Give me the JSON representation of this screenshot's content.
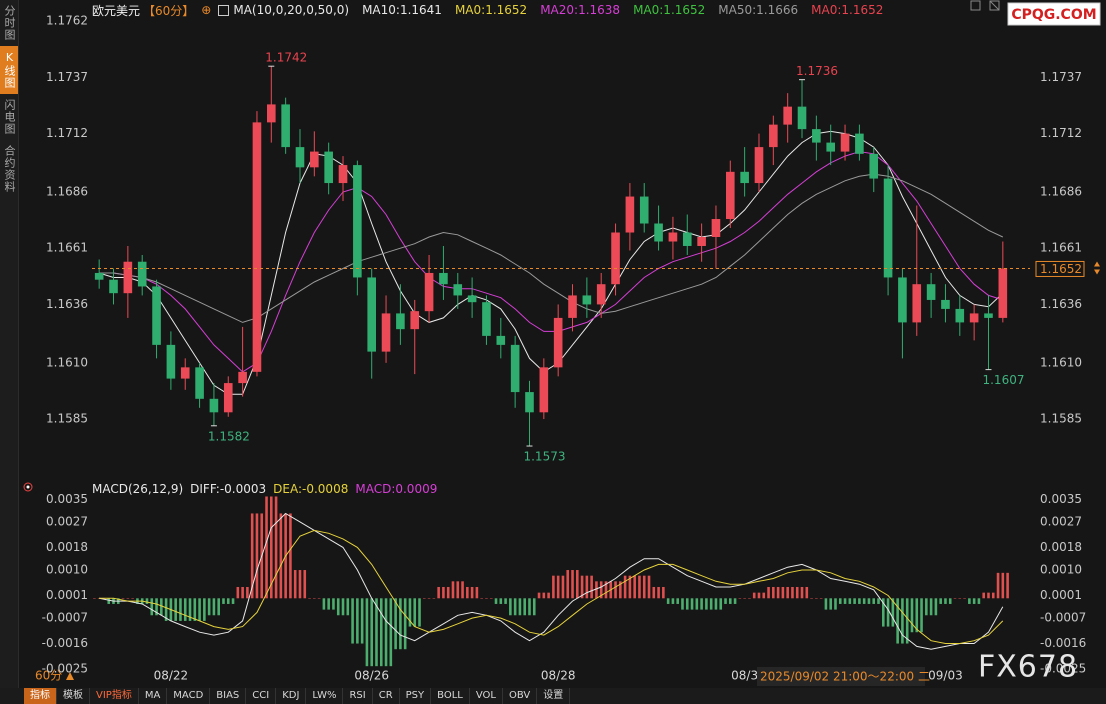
{
  "sidebar": {
    "tabs": [
      "分时图",
      "K线图",
      "闪电图",
      "合约资料"
    ]
  },
  "logo": "CPQG.COM",
  "watermark": "FX678",
  "period_selector": "60分",
  "toolbar": {
    "tabs": [
      "指标",
      "模板",
      "VIP指标",
      "MA",
      "MACD",
      "BIAS",
      "CCI",
      "KDJ",
      "LW%",
      "RSI",
      "CR",
      "PSY",
      "BOLL",
      "VOL",
      "OBV",
      "设置"
    ]
  },
  "chart_data": [
    {
      "type": "candlestick",
      "title": "欧元美元",
      "subtitle": "【60分】",
      "indicator": "MA(10,0,20,0,50,0)",
      "crosshair_label": "2025/09/02 21:00～22:00 二",
      "up_color": "#ec4a56",
      "down_color": "#2fae70",
      "categories": [
        null,
        null,
        null,
        null,
        null,
        "08/22",
        null,
        null,
        null,
        null,
        null,
        null,
        null,
        null,
        null,
        null,
        null,
        null,
        null,
        "08/26",
        null,
        null,
        null,
        null,
        null,
        null,
        null,
        null,
        null,
        null,
        null,
        null,
        "08/28",
        null,
        null,
        null,
        null,
        null,
        null,
        null,
        null,
        null,
        null,
        null,
        null,
        "08/3",
        null,
        null,
        null,
        null,
        null,
        null,
        null,
        null,
        null,
        null,
        null,
        null,
        null,
        "09/03",
        null,
        null,
        null,
        null
      ],
      "open": [
        1.165,
        1.1647,
        1.1641,
        1.1655,
        1.1644,
        1.1618,
        1.1603,
        1.1608,
        1.1594,
        1.1588,
        1.1601,
        1.1606,
        1.1717,
        1.1725,
        1.1706,
        1.1697,
        1.1704,
        1.169,
        1.1698,
        1.1648,
        1.1615,
        1.1632,
        1.1625,
        1.1633,
        1.165,
        1.1645,
        1.164,
        1.1637,
        1.1622,
        1.1618,
        1.1597,
        1.1588,
        1.1608,
        1.163,
        1.164,
        1.1636,
        1.1645,
        1.1668,
        1.1684,
        1.1672,
        1.1664,
        1.1668,
        1.1662,
        1.1666,
        1.1674,
        1.1695,
        1.169,
        1.1706,
        1.1716,
        1.1724,
        1.1714,
        1.1708,
        1.1704,
        1.1712,
        1.1703,
        1.1692,
        1.1648,
        1.1628,
        1.1645,
        1.1638,
        1.1634,
        1.1628,
        1.1632,
        1.163
      ],
      "high": [
        1.1656,
        1.1652,
        1.1662,
        1.1658,
        1.1647,
        1.1624,
        1.1612,
        1.161,
        1.1601,
        1.1604,
        1.1626,
        1.1722,
        1.1742,
        1.1728,
        1.1714,
        1.1713,
        1.1708,
        1.1702,
        1.17,
        1.1652,
        1.164,
        1.1645,
        1.1638,
        1.1658,
        1.1662,
        1.165,
        1.1648,
        1.164,
        1.163,
        1.1622,
        1.1602,
        1.1612,
        1.1636,
        1.1645,
        1.1648,
        1.165,
        1.1672,
        1.169,
        1.169,
        1.168,
        1.1675,
        1.1676,
        1.1672,
        1.168,
        1.17,
        1.1706,
        1.1712,
        1.172,
        1.173,
        1.1736,
        1.172,
        1.1716,
        1.1716,
        1.1716,
        1.1706,
        1.1698,
        1.1652,
        1.168,
        1.165,
        1.1645,
        1.164,
        1.1636,
        1.164,
        1.1664
      ],
      "low": [
        1.1643,
        1.1636,
        1.163,
        1.164,
        1.1612,
        1.1598,
        1.1598,
        1.159,
        1.1582,
        1.1586,
        1.1595,
        1.1604,
        1.1708,
        1.1703,
        1.169,
        1.1693,
        1.1685,
        1.1682,
        1.164,
        1.1603,
        1.161,
        1.1618,
        1.1605,
        1.1628,
        1.1638,
        1.1634,
        1.163,
        1.1618,
        1.1612,
        1.159,
        1.1573,
        1.1585,
        1.1604,
        1.1624,
        1.163,
        1.163,
        1.164,
        1.166,
        1.1668,
        1.166,
        1.1656,
        1.1658,
        1.1655,
        1.1652,
        1.167,
        1.1684,
        1.1686,
        1.1698,
        1.1708,
        1.171,
        1.17,
        1.1698,
        1.17,
        1.17,
        1.1686,
        1.164,
        1.1612,
        1.1622,
        1.163,
        1.1628,
        1.1622,
        1.162,
        1.1607,
        1.1628
      ],
      "close": [
        1.1647,
        1.1641,
        1.1655,
        1.1644,
        1.1618,
        1.1603,
        1.1608,
        1.1594,
        1.1588,
        1.1601,
        1.1606,
        1.1717,
        1.1725,
        1.1706,
        1.1697,
        1.1704,
        1.169,
        1.1698,
        1.1648,
        1.1615,
        1.1632,
        1.1625,
        1.1633,
        1.165,
        1.1645,
        1.164,
        1.1637,
        1.1622,
        1.1618,
        1.1597,
        1.1588,
        1.1608,
        1.163,
        1.164,
        1.1636,
        1.1645,
        1.1668,
        1.1684,
        1.1672,
        1.1664,
        1.1668,
        1.1662,
        1.1666,
        1.1674,
        1.1695,
        1.169,
        1.1706,
        1.1716,
        1.1724,
        1.1714,
        1.1708,
        1.1704,
        1.1712,
        1.1703,
        1.1692,
        1.1648,
        1.1628,
        1.1645,
        1.1638,
        1.1634,
        1.1628,
        1.1632,
        1.163,
        1.1652
      ],
      "series": [
        {
          "name": "MA10:1.1641",
          "color": "#e8e8e8",
          "values": [
            1.165,
            1.1648,
            1.1648,
            1.1646,
            1.164,
            1.163,
            1.162,
            1.161,
            1.16,
            1.1596,
            1.1596,
            1.1612,
            1.164,
            1.1668,
            1.169,
            1.1703,
            1.1702,
            1.1698,
            1.169,
            1.1672,
            1.1655,
            1.1642,
            1.1632,
            1.1628,
            1.163,
            1.1636,
            1.164,
            1.1638,
            1.1634,
            1.1625,
            1.1612,
            1.1606,
            1.161,
            1.1618,
            1.1626,
            1.1634,
            1.1645,
            1.1656,
            1.1664,
            1.1668,
            1.167,
            1.1668,
            1.1666,
            1.1667,
            1.1672,
            1.1678,
            1.1686,
            1.1694,
            1.1702,
            1.1708,
            1.1712,
            1.1713,
            1.1712,
            1.171,
            1.1706,
            1.1698,
            1.1684,
            1.1672,
            1.166,
            1.1648,
            1.164,
            1.1636,
            1.1635,
            1.1641
          ]
        },
        {
          "name": "MA0:1.1652",
          "color": "#e6d23c"
        },
        {
          "name": "MA20:1.1638",
          "color": "#d63fd6",
          "values": [
            1.165,
            1.165,
            1.1649,
            1.1648,
            1.1645,
            1.164,
            1.1634,
            1.1626,
            1.1618,
            1.1612,
            1.1606,
            1.161,
            1.1624,
            1.164,
            1.1655,
            1.1668,
            1.1678,
            1.1686,
            1.1688,
            1.1684,
            1.1676,
            1.1665,
            1.1655,
            1.1648,
            1.1644,
            1.1643,
            1.1643,
            1.1641,
            1.1639,
            1.1634,
            1.1628,
            1.1624,
            1.1624,
            1.1626,
            1.1628,
            1.1632,
            1.1636,
            1.1642,
            1.1648,
            1.1652,
            1.1655,
            1.1657,
            1.1659,
            1.1661,
            1.1664,
            1.1668,
            1.1673,
            1.1679,
            1.1685,
            1.169,
            1.1695,
            1.1699,
            1.1702,
            1.1704,
            1.1703,
            1.1698,
            1.169,
            1.1682,
            1.1672,
            1.1662,
            1.1652,
            1.1645,
            1.164,
            1.1638
          ]
        },
        {
          "name": "MA0:1.1652",
          "color": "#3fc23f"
        },
        {
          "name": "MA50:1.1666",
          "color": "#9a9a9a",
          "values": [
            1.165,
            1.165,
            1.1649,
            1.1648,
            1.1646,
            1.1643,
            1.164,
            1.1637,
            1.1634,
            1.1631,
            1.1628,
            1.163,
            1.1634,
            1.1638,
            1.1642,
            1.1646,
            1.1649,
            1.1652,
            1.1655,
            1.1657,
            1.1659,
            1.1661,
            1.1663,
            1.1666,
            1.1668,
            1.1667,
            1.1664,
            1.1661,
            1.1658,
            1.1654,
            1.165,
            1.1645,
            1.1641,
            1.1637,
            1.1634,
            1.1632,
            1.1633,
            1.1635,
            1.1637,
            1.1639,
            1.1641,
            1.1643,
            1.1645,
            1.1648,
            1.1653,
            1.1658,
            1.1664,
            1.167,
            1.1676,
            1.1681,
            1.1685,
            1.1688,
            1.1691,
            1.1693,
            1.1694,
            1.1693,
            1.1691,
            1.1688,
            1.1685,
            1.1681,
            1.1677,
            1.1673,
            1.1669,
            1.1666
          ]
        },
        {
          "name": "MA0:1.1652",
          "color": "#e8434f"
        }
      ],
      "ylim": [
        1.1565,
        1.1767
      ],
      "yticks": [
        1.1762,
        1.1737,
        1.1712,
        1.1686,
        1.1661,
        1.1636,
        {
          "value": 1.161,
          "label": "1.1610"
        },
        1.1585
      ],
      "yticks_right": [
        1.1737,
        1.1712,
        1.1686,
        1.1661,
        1.1636,
        {
          "value": 1.161,
          "label": "1.1610"
        },
        1.1585
      ],
      "grid": false
    },
    {
      "type": "macd",
      "title": "MACD(26,12,9)",
      "series": [
        {
          "name": "DIFF:-0.0003",
          "color": "#e8e8e8",
          "style": "line",
          "values": [
            0.0,
            -0.0001,
            -0.0001,
            -0.0002,
            -0.0005,
            -0.0008,
            -0.001,
            -0.0012,
            -0.0013,
            -0.0012,
            -0.0008,
            0.001,
            0.0025,
            0.003,
            0.0027,
            0.0024,
            0.0021,
            0.0018,
            0.001,
            0.0,
            -0.0008,
            -0.0013,
            -0.0015,
            -0.0012,
            -0.0009,
            -0.0006,
            -0.0005,
            -0.0006,
            -0.0008,
            -0.0012,
            -0.0015,
            -0.0012,
            -0.0006,
            -0.0001,
            0.0002,
            0.0004,
            0.0007,
            0.0011,
            0.0014,
            0.0014,
            0.0011,
            0.0008,
            0.0006,
            0.0004,
            0.0004,
            0.0005,
            0.0007,
            0.0009,
            0.0011,
            0.0012,
            0.001,
            0.0007,
            0.0006,
            0.0005,
            0.0003,
            -0.0004,
            -0.0013,
            -0.0017,
            -0.0018,
            -0.0017,
            -0.0016,
            -0.0016,
            -0.0012,
            -0.0003
          ]
        },
        {
          "name": "DEA:-0.0008",
          "color": "#e6d23c",
          "style": "line",
          "values": [
            0.0,
            0.0,
            -0.0001,
            -0.0001,
            -0.0002,
            -0.0004,
            -0.0006,
            -0.0008,
            -0.001,
            -0.0011,
            -0.001,
            -0.0005,
            0.0005,
            0.0015,
            0.0022,
            0.0024,
            0.0023,
            0.0021,
            0.0018,
            0.0012,
            0.0004,
            -0.0004,
            -0.001,
            -0.0012,
            -0.0011,
            -0.0009,
            -0.0007,
            -0.0006,
            -0.0007,
            -0.0009,
            -0.0012,
            -0.0013,
            -0.001,
            -0.0006,
            -0.0002,
            0.0001,
            0.0004,
            0.0007,
            0.001,
            0.0012,
            0.0012,
            0.001,
            0.0008,
            0.0006,
            0.0005,
            0.0005,
            0.0006,
            0.0007,
            0.0009,
            0.001,
            0.001,
            0.0009,
            0.0007,
            0.0006,
            0.0004,
            0.0001,
            -0.0005,
            -0.0011,
            -0.0015,
            -0.0016,
            -0.0016,
            -0.0015,
            -0.0013,
            -0.0008
          ]
        },
        {
          "name": "MACD:0.0009",
          "color": "#d63fd6",
          "style": "histogram",
          "up_color": "#e0504f",
          "down_color": "#4caf6e",
          "values": [
            0.0,
            -0.0002,
            0.0,
            -0.0002,
            -0.0006,
            -0.0008,
            -0.0008,
            -0.0008,
            -0.0006,
            -0.0002,
            0.0004,
            0.003,
            0.0036,
            0.003,
            0.001,
            0.0,
            -0.0004,
            -0.0006,
            -0.0016,
            -0.0024,
            -0.0024,
            -0.0018,
            -0.001,
            0.0,
            0.0004,
            0.0006,
            0.0004,
            0.0,
            -0.0002,
            -0.0006,
            -0.0006,
            0.0002,
            0.0008,
            0.001,
            0.0008,
            0.0006,
            0.0006,
            0.0008,
            0.0008,
            0.0004,
            -0.0002,
            -0.0004,
            -0.0004,
            -0.0004,
            -0.0002,
            0.0,
            0.0002,
            0.0004,
            0.0004,
            0.0004,
            0.0,
            -0.0004,
            -0.0002,
            -0.0002,
            -0.0002,
            -0.001,
            -0.0016,
            -0.0012,
            -0.0006,
            -0.0002,
            0.0,
            -0.0002,
            0.0002,
            0.0009
          ]
        }
      ],
      "ylim": [
        -0.0025,
        0.0039
      ],
      "yticks": [
        0.0035,
        0.0027,
        0.0018,
        {
          "value": 0.001,
          "label": "0.0010"
        },
        0.0001,
        -0.0007,
        -0.0016,
        -0.0025
      ],
      "grid": false
    }
  ]
}
